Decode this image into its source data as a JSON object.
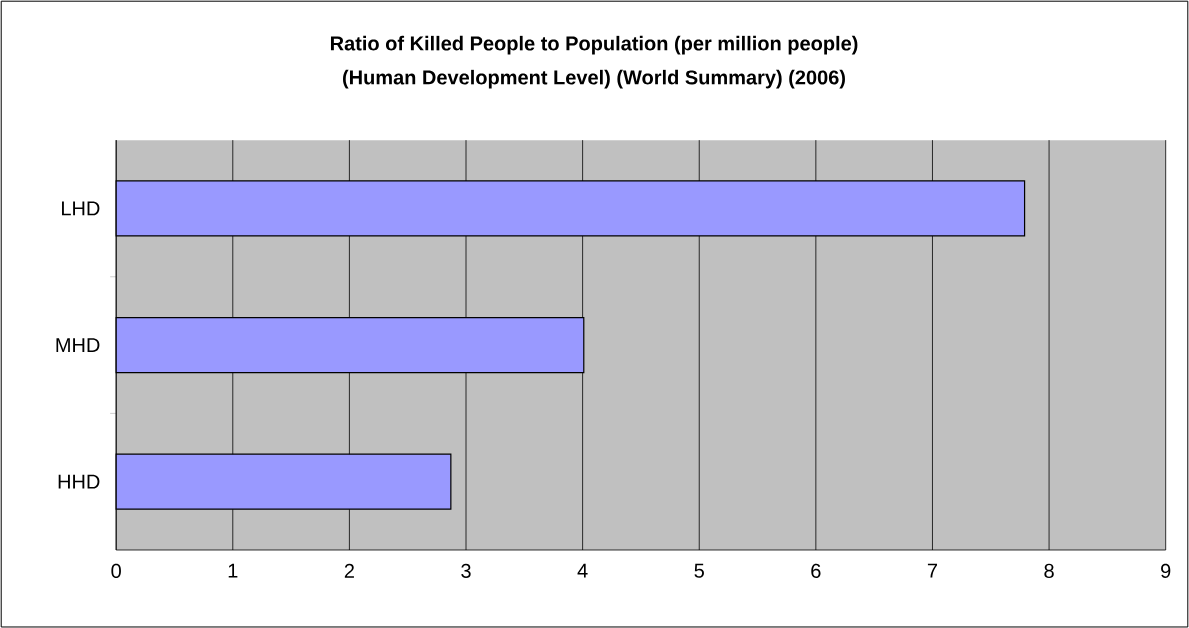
{
  "chart_data": {
    "type": "bar",
    "orientation": "horizontal",
    "title": "Ratio of Killed People to Population (per million people)",
    "subtitle": "(Human Development Level) (World Summary) (2006)",
    "categories": [
      "LHD",
      "MHD",
      "HHD"
    ],
    "values": [
      7.79,
      4.01,
      2.87
    ],
    "color": "#9999ff",
    "xlim": [
      0,
      9
    ],
    "xticks": [
      0,
      1,
      2,
      3,
      4,
      5,
      6,
      7,
      8,
      9
    ],
    "grid": "x"
  }
}
